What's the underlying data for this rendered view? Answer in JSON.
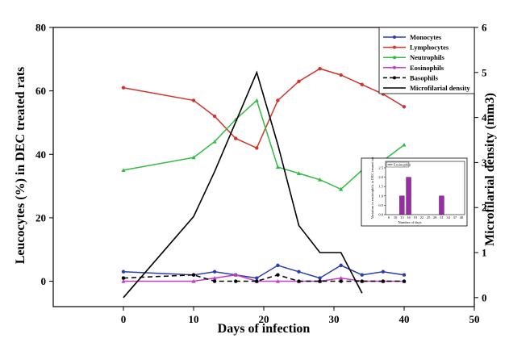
{
  "chart_data": [
    {
      "type": "line",
      "xlabel": "Days of infection",
      "ylabel": "Leucocytes (%) in DEC treated rats",
      "y2label": "Microfilarial density (mm3)",
      "x_ticks": [
        "0",
        "10",
        "20",
        "30",
        "40",
        "50"
      ],
      "y_ticks": [
        "0",
        "20",
        "40",
        "60",
        "80"
      ],
      "y2_ticks": [
        "0",
        "1",
        "2",
        "3",
        "4",
        "5",
        "6"
      ],
      "xlim": [
        -10,
        50
      ],
      "ylim": [
        -8,
        80
      ],
      "y2lim": [
        -0.2,
        6
      ],
      "grid": false,
      "legend_position": "top-right",
      "series": [
        {
          "name": "Monocytes",
          "axis": "left",
          "color": "#2a3cb0",
          "style": "solid",
          "marker": "circle",
          "x": [
            0,
            10,
            13,
            16,
            19,
            22,
            25,
            28,
            31,
            34,
            37,
            40
          ],
          "y": [
            3,
            2,
            3,
            2,
            1,
            5,
            3,
            1,
            5,
            2,
            3,
            2
          ]
        },
        {
          "name": "Lymphocytes",
          "axis": "left",
          "color": "#d0342c",
          "style": "solid",
          "marker": "circle",
          "x": [
            0,
            10,
            13,
            16,
            19,
            22,
            25,
            28,
            31,
            34,
            37,
            40
          ],
          "y": [
            61,
            57,
            52,
            45,
            42,
            57,
            63,
            67,
            65,
            62,
            59,
            55
          ]
        },
        {
          "name": "Neutrophils",
          "axis": "left",
          "color": "#2ebd3f",
          "style": "solid",
          "marker": "triangle",
          "x": [
            0,
            10,
            13,
            16,
            19,
            22,
            25,
            28,
            31,
            34,
            37,
            40
          ],
          "y": [
            35,
            39,
            44,
            51,
            57,
            36,
            34,
            32,
            29,
            35,
            38,
            43
          ]
        },
        {
          "name": "Eosinophils",
          "axis": "left",
          "color": "#c43dc4",
          "style": "solid",
          "marker": "triangle",
          "x": [
            0,
            10,
            13,
            16,
            19,
            22,
            25,
            28,
            31,
            34,
            37,
            40
          ],
          "y": [
            0,
            0,
            1,
            2,
            0,
            0,
            0,
            0,
            1,
            0,
            0,
            0
          ]
        },
        {
          "name": "Basophils",
          "axis": "left",
          "color": "#000000",
          "style": "dashed",
          "marker": "circle",
          "x": [
            0,
            10,
            13,
            16,
            19,
            22,
            25,
            28,
            31,
            34,
            37,
            40
          ],
          "y": [
            1,
            2,
            0,
            0,
            0,
            2,
            0,
            0,
            0,
            0,
            0,
            0
          ]
        },
        {
          "name": "Microfilarial density",
          "axis": "right",
          "color": "#000000",
          "style": "solid",
          "marker": "none",
          "x": [
            0,
            10,
            13,
            19,
            22,
            25,
            28,
            31,
            34
          ],
          "y": [
            0,
            1.8,
            2.8,
            5.0,
            3.4,
            1.6,
            1.0,
            1.0,
            0.1
          ]
        }
      ]
    },
    {
      "type": "bar",
      "inset": true,
      "ylabel": "Variation in eosinophils in DEC treated rat",
      "xlabel": "Number of days",
      "legend": [
        "Eosinophils"
      ],
      "color": "#9b2ba6",
      "x_ticks": [
        "0",
        "10",
        "13",
        "16",
        "19",
        "22",
        "25",
        "28",
        "31",
        "34",
        "37",
        "40"
      ],
      "y_ticks": [
        "0.0",
        "0.5",
        "1.0",
        "1.5",
        "2.0",
        "2.5"
      ],
      "ylim": [
        0,
        2.5
      ],
      "categories": [
        "13",
        "16",
        "31"
      ],
      "values": [
        1,
        2,
        1
      ]
    }
  ]
}
